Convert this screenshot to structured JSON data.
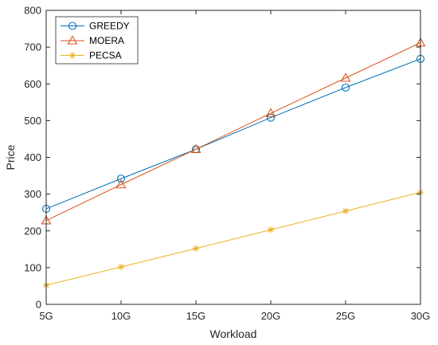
{
  "chart_data": {
    "type": "line",
    "title": "",
    "xlabel": "Workload",
    "ylabel": "Price",
    "categories": [
      "5G",
      "10G",
      "15G",
      "20G",
      "25G",
      "30G"
    ],
    "yticks": [
      0,
      100,
      200,
      300,
      400,
      500,
      600,
      700,
      800
    ],
    "ylim": [
      0,
      800
    ],
    "grid": false,
    "legend_position": "top-left",
    "series": [
      {
        "name": "GREEDY",
        "marker": "circle",
        "color": "#0072BD",
        "values": [
          260,
          342,
          422,
          508,
          590,
          668
        ]
      },
      {
        "name": "MOERA",
        "marker": "triangle",
        "color": "#D95319",
        "values": [
          228,
          326,
          422,
          520,
          616,
          712
        ]
      },
      {
        "name": "PECSA",
        "marker": "asterisk",
        "color": "#EDB120",
        "values": [
          52,
          102,
          152,
          203,
          254,
          305
        ]
      }
    ]
  }
}
